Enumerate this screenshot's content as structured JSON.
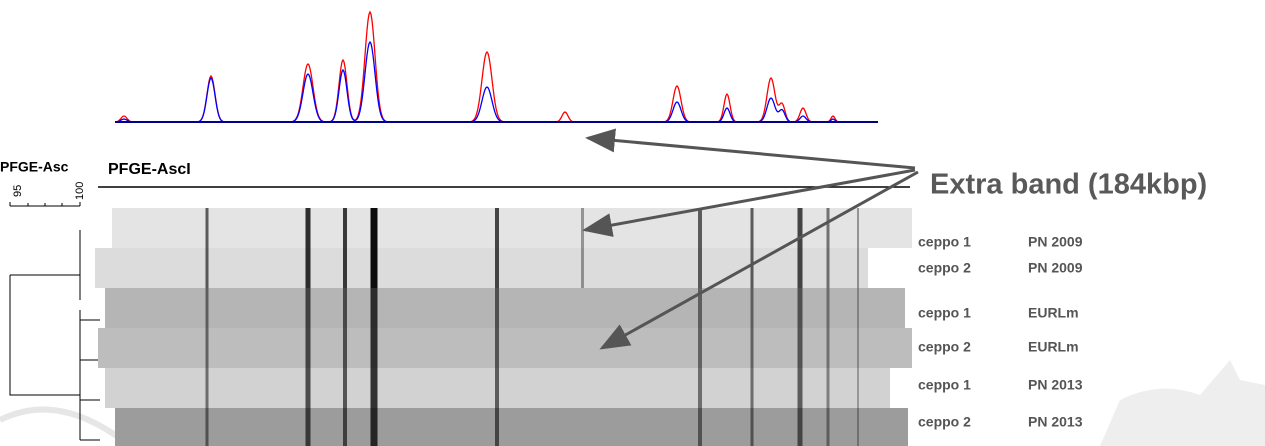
{
  "header": {
    "left_title": "PFGE-Asc",
    "title": "PFGE-AscI"
  },
  "scale": {
    "ticks": [
      "95",
      "100"
    ]
  },
  "annotation": "Extra band (184kbp)",
  "rows": [
    {
      "strain": "ceppo 1",
      "source": "PN 2009"
    },
    {
      "strain": "ceppo 2",
      "source": "PN 2009"
    },
    {
      "strain": "ceppo 1",
      "source": "EURLm"
    },
    {
      "strain": "ceppo 2",
      "source": "EURLm"
    },
    {
      "strain": "ceppo 1",
      "source": "PN 2013"
    },
    {
      "strain": "ceppo 2",
      "source": "PN 2013"
    }
  ]
}
